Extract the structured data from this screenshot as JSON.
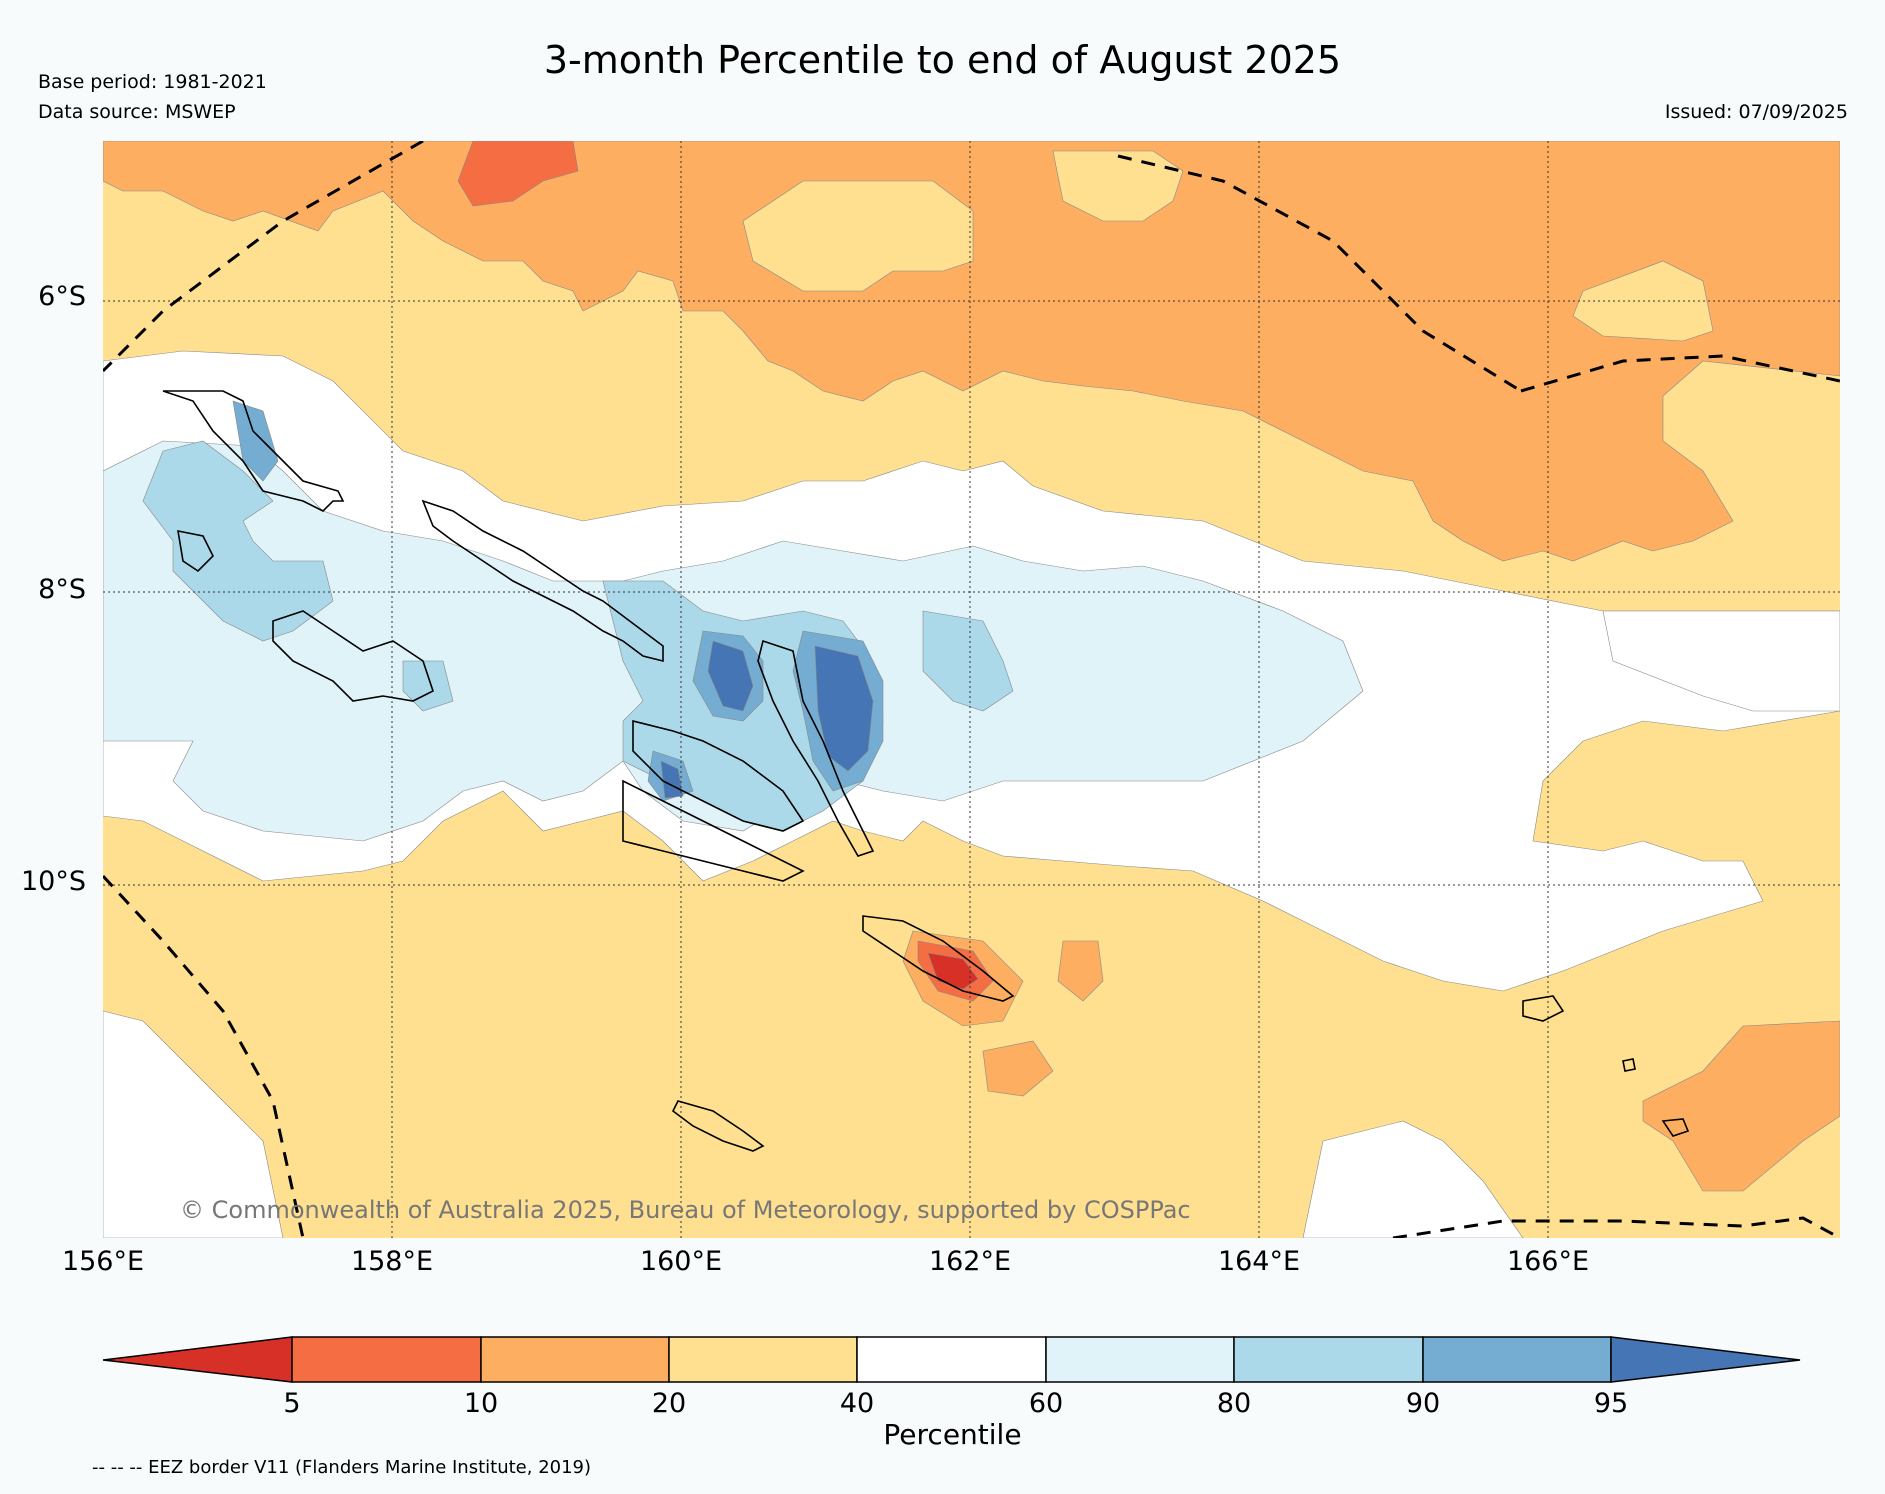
{
  "title": "3-month Percentile to end of August 2025",
  "base_period": "Base period: 1981-2021",
  "data_source": "Data source: MSWEP",
  "issued": "Issued: 07/09/2025",
  "copyright": "© Commonwealth of Australia 2025, Bureau of Meteorology, supported by COSPPac",
  "eez_note": "-- -- -- EEZ border V11 (Flanders Marine Institute, 2019)",
  "axes": {
    "lon_labels": [
      "156°E",
      "158°E",
      "160°E",
      "162°E",
      "164°E",
      "166°E"
    ],
    "lat_labels": [
      "6°S",
      "8°S",
      "10°S"
    ]
  },
  "colorbar": {
    "title": "Percentile",
    "ticks": [
      "5",
      "10",
      "20",
      "40",
      "60",
      "80",
      "90",
      "95"
    ],
    "colors": [
      "#d73027",
      "#f46d43",
      "#fdae61",
      "#fee090",
      "#ffffff",
      "#e0f3f8",
      "#abd9e9",
      "#74add1",
      "#4575b4"
    ]
  }
}
